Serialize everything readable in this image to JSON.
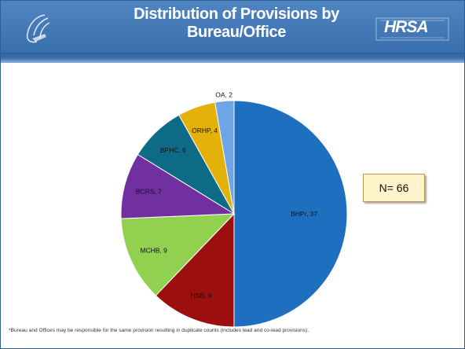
{
  "slide": {
    "title_line1": "Distribution of Provisions by",
    "title_line2": "Bureau/Office",
    "logo_left": "hhs-eagle-logo",
    "logo_right_text": "HRSA",
    "n_label": "N= 66",
    "footnote": "*Bureau and Offices may be responsible for the same provision resulting in duplicate counts (includes lead and co-lead provisions)."
  },
  "colors": {
    "header": "#3e74b4",
    "BHPr": "#1f6fc0",
    "HSB": "#9b0f0f",
    "MCHB": "#92d050",
    "BCRS": "#7030a0",
    "BPHC": "#0e6b86",
    "ORHP": "#e3b10a",
    "OA": "#6fa5e5"
  },
  "chart_data": {
    "type": "pie",
    "title": "Distribution of Provisions by Bureau/Office",
    "start": "12 o'clock, clockwise",
    "slices": [
      {
        "label": "BHPr, 37",
        "name": "BHPr",
        "value": 37
      },
      {
        "label": "HSB, 9",
        "name": "HSB",
        "value": 9
      },
      {
        "label": "MCHB, 9",
        "name": "MCHB",
        "value": 9
      },
      {
        "label": "BCRS, 7",
        "name": "BCRS",
        "value": 7
      },
      {
        "label": "BPHC, 6",
        "name": "BPHC",
        "value": 6
      },
      {
        "label": "ORHP, 4",
        "name": "ORHP",
        "value": 4
      },
      {
        "label": "OA, 2",
        "name": "OA",
        "value": 2
      }
    ]
  }
}
